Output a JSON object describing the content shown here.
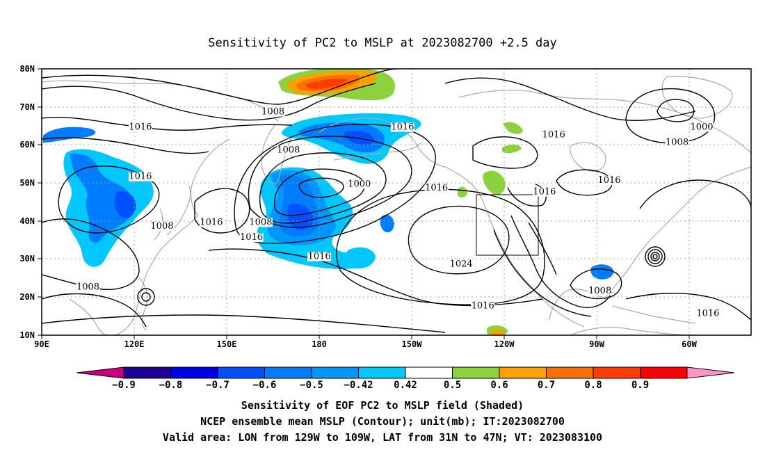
{
  "title": "Sensitivity of PC2 to MSLP at 2023082700 +2.5 day",
  "map": {
    "lon_ticks": [
      "90E",
      "120E",
      "150E",
      "180",
      "150W",
      "120W",
      "90W",
      "60W"
    ],
    "lat_ticks": [
      "80N",
      "70N",
      "60N",
      "50N",
      "40N",
      "30N",
      "20N",
      "10N"
    ],
    "lon_range_deg_east": [
      90,
      320
    ],
    "lat_range": [
      10,
      80
    ],
    "grid": true,
    "valid_box": {
      "lon_west": -129,
      "lon_east": -109,
      "lat_south": 31,
      "lat_north": 47
    }
  },
  "contour_labels": [
    {
      "text": "1008",
      "lon": 165,
      "lat": 68
    },
    {
      "text": "1016",
      "lon": 122,
      "lat": 64
    },
    {
      "text": "1016",
      "lon": 207,
      "lat": 64
    },
    {
      "text": "1016",
      "lon": 256,
      "lat": 62
    },
    {
      "text": "1000",
      "lon": 304,
      "lat": 64
    },
    {
      "text": "1008",
      "lon": 296,
      "lat": 60
    },
    {
      "text": "1008",
      "lon": 170,
      "lat": 58
    },
    {
      "text": "1016",
      "lon": 122,
      "lat": 51
    },
    {
      "text": "1000",
      "lon": 193,
      "lat": 49
    },
    {
      "text": "1016",
      "lon": 218,
      "lat": 48
    },
    {
      "text": "1016",
      "lon": 253,
      "lat": 47
    },
    {
      "text": "1016",
      "lon": 274,
      "lat": 50
    },
    {
      "text": "1008",
      "lon": 129,
      "lat": 38
    },
    {
      "text": "1016",
      "lon": 145,
      "lat": 39
    },
    {
      "text": "1008",
      "lon": 161,
      "lat": 39
    },
    {
      "text": "1016",
      "lon": 158,
      "lat": 35
    },
    {
      "text": "1016",
      "lon": 180,
      "lat": 30
    },
    {
      "text": "1024",
      "lon": 226,
      "lat": 28
    },
    {
      "text": "1008",
      "lon": 105,
      "lat": 22
    },
    {
      "text": "1016",
      "lon": 233,
      "lat": 17
    },
    {
      "text": "1008",
      "lon": 271,
      "lat": 21
    },
    {
      "text": "1016",
      "lon": 306,
      "lat": 15
    }
  ],
  "colorbar": {
    "labels": [
      "−0.9",
      "−0.8",
      "−0.7",
      "−0.6",
      "−0.5",
      "−0.42",
      "0.42",
      "0.5",
      "0.6",
      "0.7",
      "0.8",
      "0.9"
    ],
    "colors": [
      "#1e0096",
      "#0000e6",
      "#0050ff",
      "#007dff",
      "#0096ff",
      "#00c8ff",
      "#ffffff",
      "#8cd23c",
      "#ffa000",
      "#ff6e00",
      "#ff3c00",
      "#ff0000"
    ],
    "under_color": "#c8007d",
    "over_color": "#ff96c8"
  },
  "caption": [
    "Sensitivity of EOF PC2 to MSLP field (Shaded)",
    "NCEP ensemble mean MSLP (Contour); unit(mb); IT:2023082700",
    "Valid area: LON from 129W to 109W, LAT from 31N to 47N; VT: 2023083100"
  ]
}
